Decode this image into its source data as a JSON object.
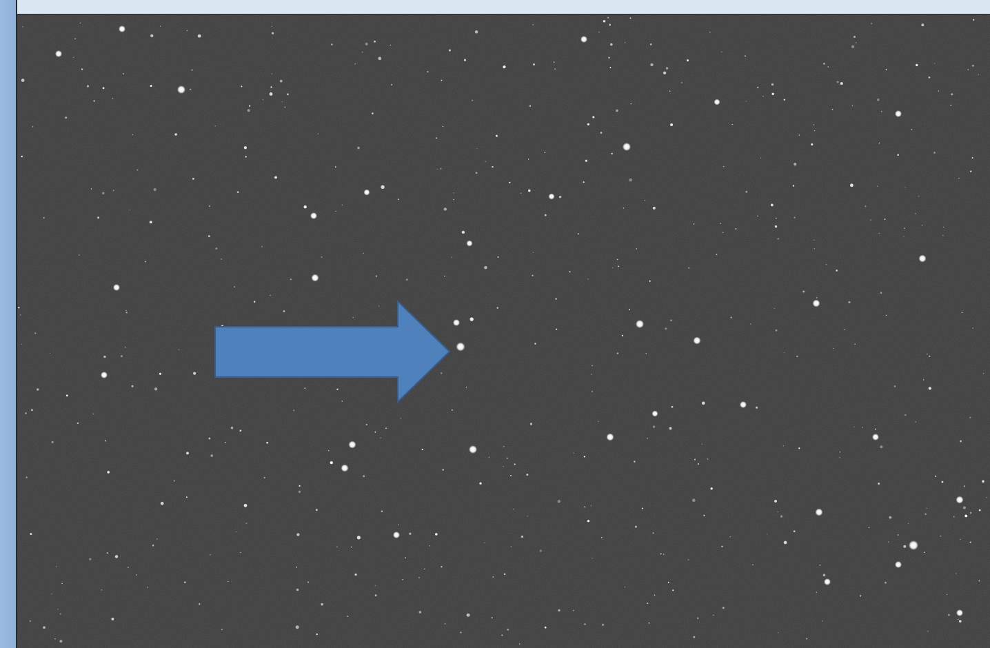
{
  "image": {
    "subject": "star field",
    "background_color": "#3a3a3a",
    "star_color": "#ffffff"
  },
  "annotation": {
    "icon": "right-arrow-icon",
    "fill_color": "#4f81bd",
    "stroke_color": "#385d8a"
  },
  "frame": {
    "left_strip_color": "#95b3d7",
    "top_strip_color": "#dce6f2"
  }
}
